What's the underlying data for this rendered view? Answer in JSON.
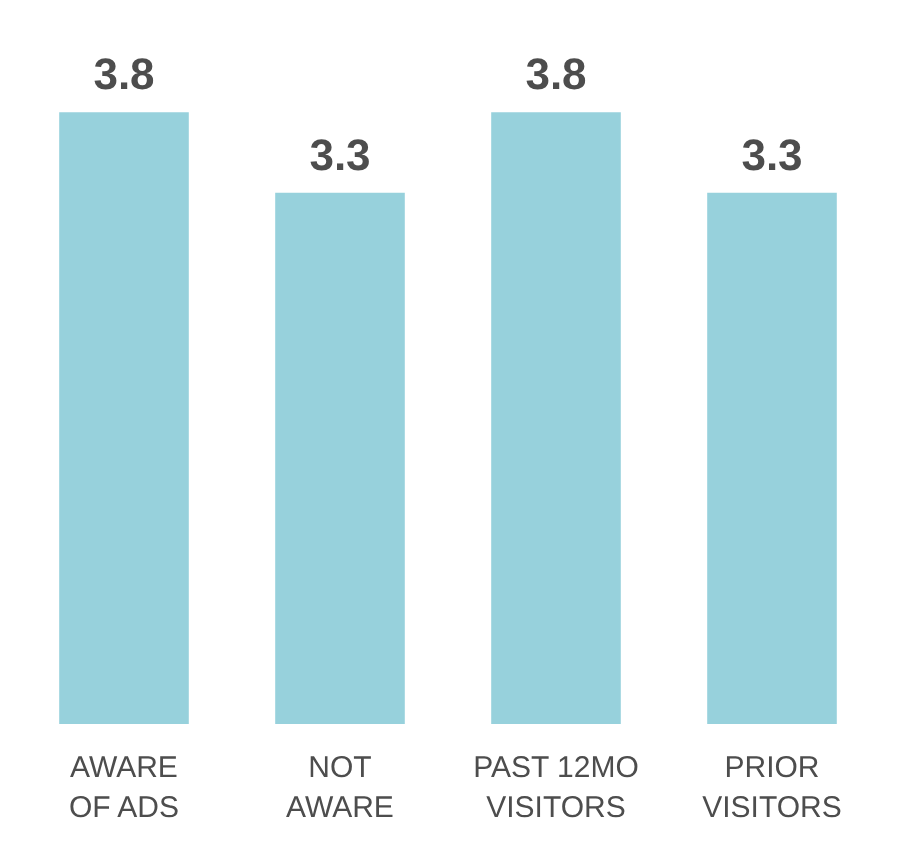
{
  "chart_data": {
    "type": "bar",
    "categories": [
      "AWARE\nOF ADS",
      "NOT\nAWARE",
      "PAST 12MO\nVISITORS",
      "PRIOR\nVISITORS"
    ],
    "values": [
      3.8,
      3.3,
      3.8,
      3.3
    ],
    "color": "#97d1dc",
    "data_labels": true
  }
}
